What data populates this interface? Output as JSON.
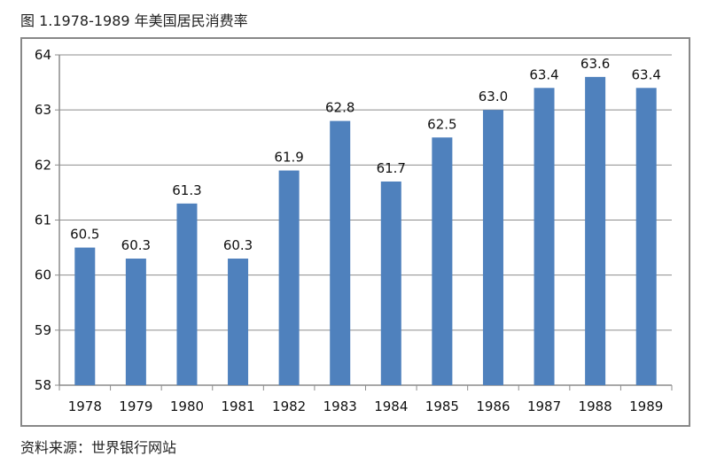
{
  "title": "图 1.1978-1989 年美国居民消费率",
  "source": "资料来源：世界银行网站",
  "chart_data": {
    "type": "bar",
    "categories": [
      "1978",
      "1979",
      "1980",
      "1981",
      "1982",
      "1983",
      "1984",
      "1985",
      "1986",
      "1987",
      "1988",
      "1989"
    ],
    "values": [
      60.5,
      60.3,
      61.3,
      60.3,
      61.9,
      62.8,
      61.7,
      62.5,
      63.0,
      63.4,
      63.6,
      63.4
    ],
    "data_labels": [
      "60.5",
      "60.3",
      "61.3",
      "60.3",
      "61.9",
      "62.8",
      "61.7",
      "62.5",
      "63.0",
      "63.4",
      "63.6",
      "63.4"
    ],
    "ylim": [
      58,
      64
    ],
    "yticks": [
      58,
      59,
      60,
      61,
      62,
      63,
      64
    ],
    "grid": true,
    "bar_color": "#4f81bd",
    "grid_color": "#8c8c8c"
  }
}
